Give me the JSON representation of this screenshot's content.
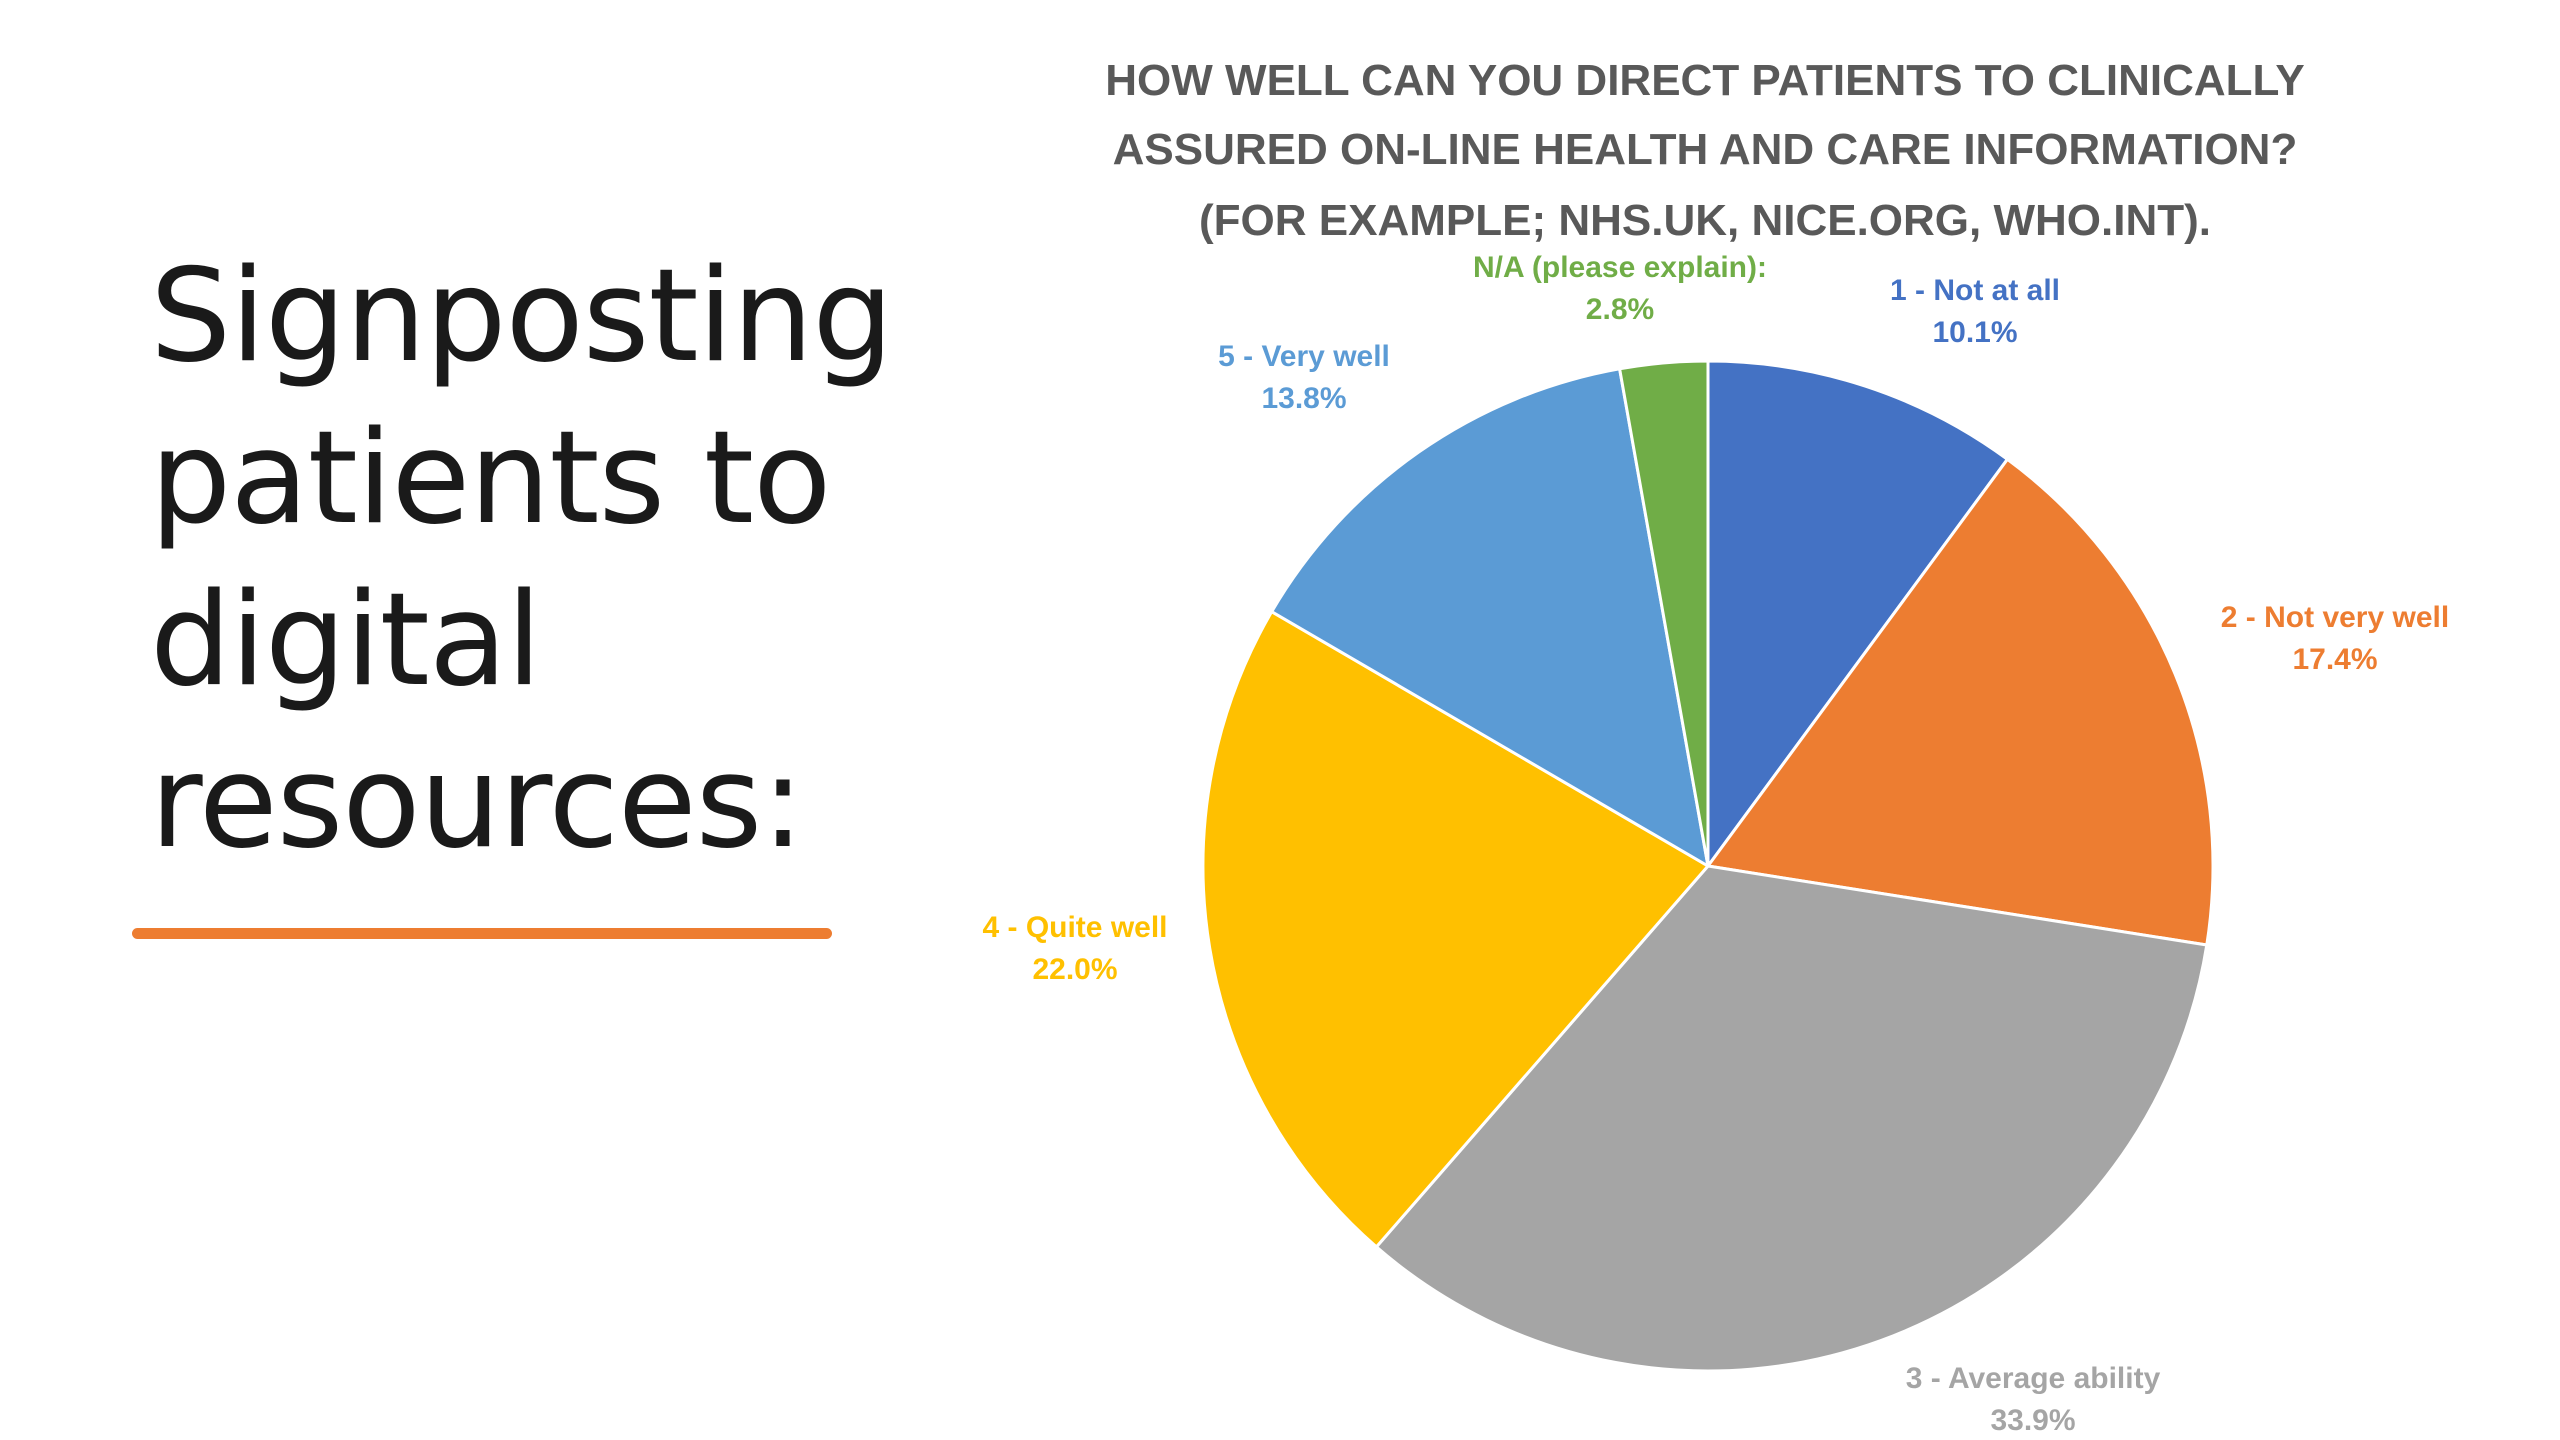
{
  "slide": {
    "title_lines": [
      "Signposting",
      "patients to",
      "digital",
      "resources:"
    ],
    "accent_color": "#ED7D31"
  },
  "chart_data": {
    "type": "pie",
    "title": "HOW WELL CAN YOU DIRECT PATIENTS TO CLINICALLY ASSURED ON-LINE HEALTH AND CARE INFORMATION? (FOR EXAMPLE; NHS.UK, NICE.ORG, WHO.INT).",
    "title_lines": [
      "HOW WELL CAN YOU DIRECT PATIENTS TO CLINICALLY",
      "ASSURED ON-LINE HEALTH AND CARE INFORMATION?",
      "(FOR EXAMPLE; NHS.UK, NICE.ORG, WHO.INT)."
    ],
    "legend": "none",
    "slices": [
      {
        "label": "1 - Not at all",
        "value": 10.1,
        "value_label": "10.1%",
        "color": "#4472C4"
      },
      {
        "label": "2 - Not very well",
        "value": 17.4,
        "value_label": "17.4%",
        "color": "#ED7D31"
      },
      {
        "label": "3 - Average ability",
        "value": 33.9,
        "value_label": "33.9%",
        "color": "#A5A5A5"
      },
      {
        "label": "4 - Quite well",
        "value": 22.0,
        "value_label": "22.0%",
        "color": "#FFC000"
      },
      {
        "label": "5 - Very well",
        "value": 13.8,
        "value_label": "13.8%",
        "color": "#5B9BD5"
      },
      {
        "label": "N/A (please explain):",
        "value": 2.8,
        "value_label": "2.8%",
        "color": "#70AD47"
      }
    ]
  }
}
